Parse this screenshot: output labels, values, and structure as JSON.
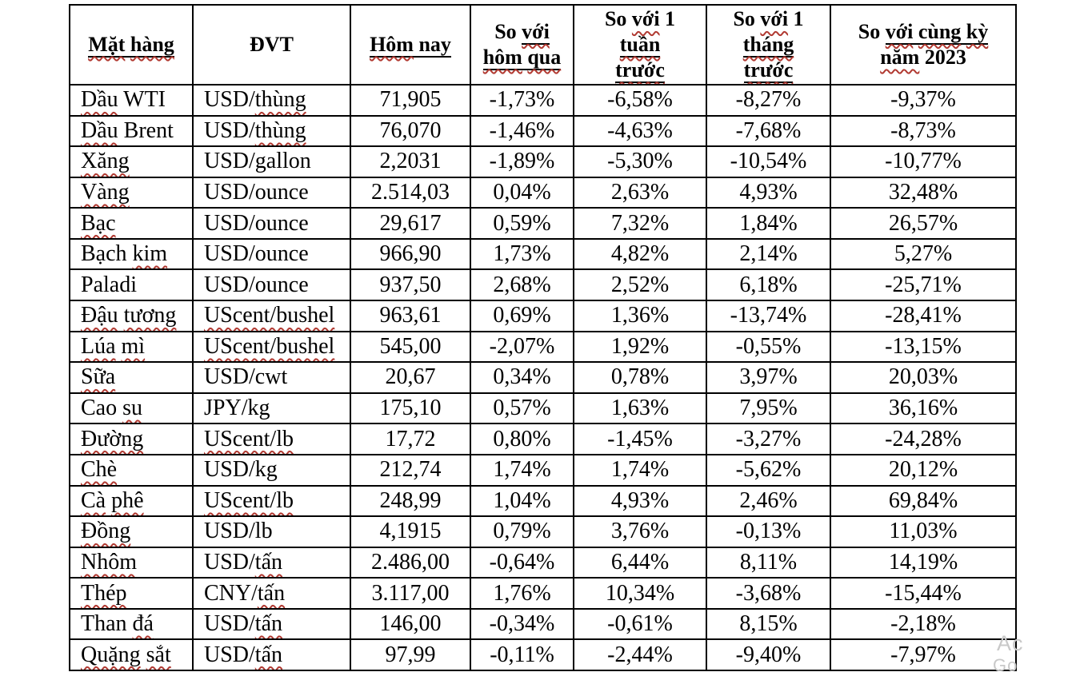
{
  "page": {
    "background": "#ffffff",
    "text_color": "#000000",
    "squiggle_color": "#b13a32",
    "border_color": "#000000"
  },
  "watermark": {
    "line1": "Ac",
    "line2": "Go",
    "color": "#c9c9c9"
  },
  "table": {
    "headers": [
      {
        "id": "mat-hang",
        "label": "Mặt hàng",
        "lines": [
          [
            [
              "Mặt",
              "sw"
            ],
            [
              " ",
              "s"
            ],
            [
              "hàng",
              "sw"
            ]
          ]
        ]
      },
      {
        "id": "dvt",
        "label": "ĐVT",
        "lines": [
          [
            [
              "ĐVT",
              ""
            ]
          ]
        ]
      },
      {
        "id": "hom-nay",
        "label": "Hôm nay",
        "lines": [
          [
            [
              "Hôm",
              "sw"
            ],
            [
              " ",
              "s"
            ],
            [
              "nay",
              "s"
            ]
          ]
        ]
      },
      {
        "id": "so-voi-hom-qua",
        "label": "So với hôm qua",
        "lines": [
          [
            [
              "So ",
              ""
            ],
            [
              "với",
              "sw"
            ]
          ],
          [
            [
              "hôm",
              "sw"
            ],
            [
              " ",
              "s"
            ],
            [
              "qua",
              "sw"
            ]
          ]
        ]
      },
      {
        "id": "so-voi-1-tuan-truoc",
        "label": "So với 1 tuần trước",
        "lines": [
          [
            [
              "So ",
              ""
            ],
            [
              "với",
              "w"
            ],
            [
              " 1",
              ""
            ]
          ],
          [
            [
              "tuần",
              "sw"
            ]
          ],
          [
            [
              "trước",
              "sw"
            ]
          ]
        ]
      },
      {
        "id": "so-voi-1-thang-truoc",
        "label": "So với 1 tháng trước",
        "lines": [
          [
            [
              "So ",
              ""
            ],
            [
              "với",
              "w"
            ],
            [
              " 1",
              ""
            ]
          ],
          [
            [
              "tháng",
              "sw"
            ]
          ],
          [
            [
              "trước",
              "sw"
            ]
          ]
        ]
      },
      {
        "id": "so-voi-cung-ky-nam-2023",
        "label": "So với cùng kỳ năm 2023",
        "lines": [
          [
            [
              "So ",
              ""
            ],
            [
              "với",
              "sw"
            ],
            [
              " ",
              "s"
            ],
            [
              "cùng",
              "sw"
            ],
            [
              " ",
              "s"
            ],
            [
              "kỳ",
              "sw"
            ]
          ],
          [
            [
              "năm",
              "w"
            ],
            [
              " 2023",
              ""
            ]
          ]
        ]
      }
    ],
    "rows": [
      {
        "name": [
          [
            "Dầu",
            "w"
          ],
          [
            " WTI",
            ""
          ]
        ],
        "unit": [
          [
            "USD/",
            ""
          ],
          [
            "thùng",
            "w"
          ]
        ],
        "today": "71,905",
        "vs_yesterday": "-1,73%",
        "vs_week": "-6,58%",
        "vs_month": "-8,27%",
        "vs_2023": "-9,37%"
      },
      {
        "name": [
          [
            "Dầu",
            "w"
          ],
          [
            " Brent",
            ""
          ]
        ],
        "unit": [
          [
            "USD/",
            ""
          ],
          [
            "thùng",
            "w"
          ]
        ],
        "today": "76,070",
        "vs_yesterday": "-1,46%",
        "vs_week": "-4,63%",
        "vs_month": "-7,68%",
        "vs_2023": "-8,73%"
      },
      {
        "name": [
          [
            "Xăng",
            "w"
          ]
        ],
        "unit": [
          [
            "USD/gallon",
            ""
          ]
        ],
        "today": "2,2031",
        "vs_yesterday": "-1,89%",
        "vs_week": "-5,30%",
        "vs_month": "-10,54%",
        "vs_2023": "-10,77%"
      },
      {
        "name": [
          [
            "Vàng",
            "w"
          ]
        ],
        "unit": [
          [
            "USD/ounce",
            ""
          ]
        ],
        "today": "2.514,03",
        "vs_yesterday": "0,04%",
        "vs_week": "2,63%",
        "vs_month": "4,93%",
        "vs_2023": "32,48%"
      },
      {
        "name": [
          [
            "Bạc",
            "w"
          ]
        ],
        "unit": [
          [
            "USD/ounce",
            ""
          ]
        ],
        "today": "29,617",
        "vs_yesterday": "0,59%",
        "vs_week": "7,32%",
        "vs_month": "1,84%",
        "vs_2023": "26,57%"
      },
      {
        "name": [
          [
            "Bạch ",
            ""
          ],
          [
            "kim",
            "w"
          ]
        ],
        "unit": [
          [
            "USD/ounce",
            ""
          ]
        ],
        "today": "966,90",
        "vs_yesterday": "1,73%",
        "vs_week": "4,82%",
        "vs_month": "2,14%",
        "vs_2023": "5,27%"
      },
      {
        "name": [
          [
            "Paladi",
            ""
          ]
        ],
        "unit": [
          [
            "USD/ounce",
            ""
          ]
        ],
        "today": "937,50",
        "vs_yesterday": "2,68%",
        "vs_week": "2,52%",
        "vs_month": "6,18%",
        "vs_2023": "-25,71%"
      },
      {
        "name": [
          [
            "Đậu",
            "w"
          ],
          [
            " ",
            ""
          ],
          [
            "tương",
            "w"
          ]
        ],
        "unit": [
          [
            "UScent/bushel",
            "w"
          ]
        ],
        "today": "963,61",
        "vs_yesterday": "0,69%",
        "vs_week": "1,36%",
        "vs_month": "-13,74%",
        "vs_2023": "-28,41%"
      },
      {
        "name": [
          [
            "Lúa",
            "w"
          ],
          [
            " ",
            ""
          ],
          [
            "mì",
            "w"
          ]
        ],
        "unit": [
          [
            "UScent/bushel",
            "w"
          ]
        ],
        "today": "545,00",
        "vs_yesterday": "-2,07%",
        "vs_week": "1,92%",
        "vs_month": "-0,55%",
        "vs_2023": "-13,15%"
      },
      {
        "name": [
          [
            "Sữa",
            "w"
          ]
        ],
        "unit": [
          [
            "USD/cwt",
            ""
          ]
        ],
        "today": "20,67",
        "vs_yesterday": "0,34%",
        "vs_week": "0,78%",
        "vs_month": "3,97%",
        "vs_2023": "20,03%"
      },
      {
        "name": [
          [
            "Cao ",
            ""
          ],
          [
            "su",
            "w"
          ]
        ],
        "unit": [
          [
            "JPY/kg",
            ""
          ]
        ],
        "today": "175,10",
        "vs_yesterday": "0,57%",
        "vs_week": "1,63%",
        "vs_month": "7,95%",
        "vs_2023": "36,16%"
      },
      {
        "name": [
          [
            "Đường",
            "w"
          ]
        ],
        "unit": [
          [
            "UScent/lb",
            "w"
          ]
        ],
        "today": "17,72",
        "vs_yesterday": "0,80%",
        "vs_week": "-1,45%",
        "vs_month": "-3,27%",
        "vs_2023": "-24,28%"
      },
      {
        "name": [
          [
            "Chè",
            "w"
          ]
        ],
        "unit": [
          [
            "USD/kg",
            ""
          ]
        ],
        "today": "212,74",
        "vs_yesterday": "1,74%",
        "vs_week": "1,74%",
        "vs_month": "-5,62%",
        "vs_2023": "20,12%"
      },
      {
        "name": [
          [
            "Cà",
            "w"
          ],
          [
            " ",
            ""
          ],
          [
            "phê",
            "w"
          ]
        ],
        "unit": [
          [
            "UScent/lb",
            "w"
          ]
        ],
        "today": "248,99",
        "vs_yesterday": "1,04%",
        "vs_week": "4,93%",
        "vs_month": "2,46%",
        "vs_2023": "69,84%"
      },
      {
        "name": [
          [
            "Đồng",
            "w"
          ]
        ],
        "unit": [
          [
            "USD/lb",
            ""
          ]
        ],
        "today": "4,1915",
        "vs_yesterday": "0,79%",
        "vs_week": "3,76%",
        "vs_month": "-0,13%",
        "vs_2023": "11,03%"
      },
      {
        "name": [
          [
            "Nhôm",
            "w"
          ]
        ],
        "unit": [
          [
            "USD/",
            ""
          ],
          [
            "tấn",
            "w"
          ]
        ],
        "today": "2.486,00",
        "vs_yesterday": "-0,64%",
        "vs_week": "6,44%",
        "vs_month": "8,11%",
        "vs_2023": "14,19%"
      },
      {
        "name": [
          [
            "Thép",
            "w"
          ]
        ],
        "unit": [
          [
            "CNY/",
            ""
          ],
          [
            "tấn",
            "w"
          ]
        ],
        "today": "3.117,00",
        "vs_yesterday": "1,76%",
        "vs_week": "10,34%",
        "vs_month": "-3,68%",
        "vs_2023": "-15,44%"
      },
      {
        "name": [
          [
            "Than ",
            ""
          ],
          [
            "đá",
            "w"
          ]
        ],
        "unit": [
          [
            "USD/",
            ""
          ],
          [
            "tấn",
            "w"
          ]
        ],
        "today": "146,00",
        "vs_yesterday": "-0,34%",
        "vs_week": "-0,61%",
        "vs_month": "8,15%",
        "vs_2023": "-2,18%"
      },
      {
        "name": [
          [
            "Quặng",
            "w"
          ],
          [
            " ",
            ""
          ],
          [
            "sắt",
            "w"
          ]
        ],
        "unit": [
          [
            "USD/",
            ""
          ],
          [
            "tấn",
            "w"
          ]
        ],
        "today": "97,99",
        "vs_yesterday": "-0,11%",
        "vs_week": "-2,44%",
        "vs_month": "-9,40%",
        "vs_2023": "-7,97%"
      }
    ]
  }
}
